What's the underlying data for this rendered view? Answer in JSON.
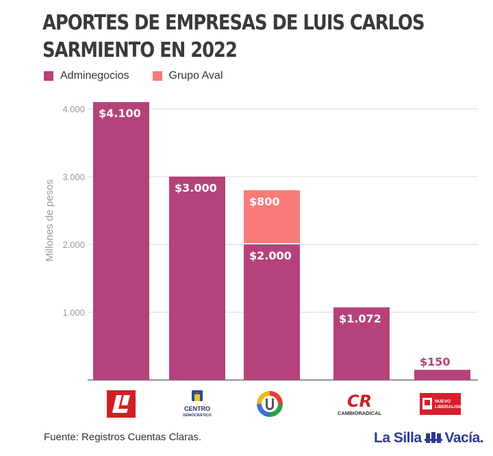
{
  "title_line1": "APORTES DE EMPRESAS DE LUIS CARLOS",
  "title_line2": "SARMIENTO EN 2022",
  "colors": {
    "Adminegocios": "#b5427a",
    "Grupo Aval": "#f97a79",
    "brand": "#2b3a8f"
  },
  "chart_data": {
    "type": "bar",
    "stacked": true,
    "ylabel": "Millones de pesos",
    "ylim": [
      0,
      4000
    ],
    "yticks": [
      1000,
      2000,
      3000,
      4000
    ],
    "ytick_labels": [
      "1.000",
      "2.000",
      "3.000",
      "4.000"
    ],
    "grid": true,
    "legend_position": "top-left",
    "categories": [
      "Partido Liberal",
      "Centro Democrático",
      "Partido de la U",
      "Cambio Radical",
      "Nuevo Liberalismo"
    ],
    "series": [
      {
        "name": "Adminegocios",
        "values": [
          4100,
          3000,
          2000,
          1072,
          150
        ],
        "labels": [
          "$4.100",
          "$3.000",
          "$2.000",
          "$1.072",
          "$150"
        ]
      },
      {
        "name": "Grupo Aval",
        "values": [
          0,
          0,
          800,
          0,
          0
        ],
        "labels": [
          "",
          "",
          "$800",
          "",
          ""
        ]
      }
    ]
  },
  "logos": {
    "centro_line1": "CENTRO",
    "centro_line2": "DEMOCRÁTICO",
    "cambio_mark": "CR",
    "cambio_text": "CAMBIORADICAL",
    "nuevo_line1": "NUEVO",
    "nuevo_line2": "LIBERALISMO"
  },
  "source_text": "Fuente: Registros Cuentas Claras.",
  "brand": {
    "part1": "La Silla",
    "part2": "Vacía."
  }
}
